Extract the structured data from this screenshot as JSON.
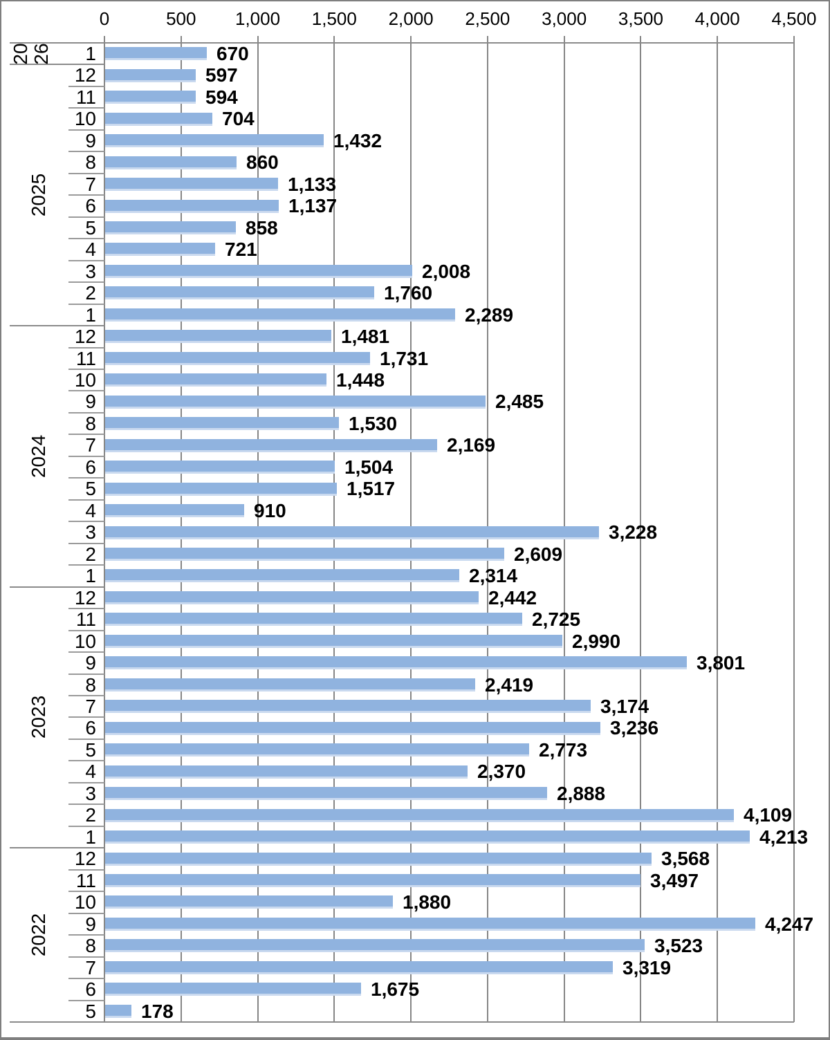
{
  "chart_data": {
    "type": "bar",
    "orientation": "horizontal",
    "title": "",
    "xlabel": "",
    "ylabel": "",
    "value_axis": {
      "position": "top",
      "min": 0,
      "max": 4500,
      "tick_interval": 500,
      "tick_labels": [
        "0",
        "500",
        "1,000",
        "1,500",
        "2,000",
        "2,500",
        "3,000",
        "3,500",
        "4,000",
        "4,500"
      ],
      "grid": true
    },
    "category_axis": {
      "levels": [
        "year",
        "month"
      ],
      "order": "newest-first"
    },
    "data_labels": {
      "show": true,
      "format": "#,##0",
      "position": "outside-end",
      "bold": true
    },
    "groups": [
      {
        "year": "2026",
        "year_label_wrapped": [
          "20",
          "26"
        ],
        "rows": [
          {
            "month": "1",
            "value": 670
          }
        ]
      },
      {
        "year": "2025",
        "rows": [
          {
            "month": "12",
            "value": 597
          },
          {
            "month": "11",
            "value": 594
          },
          {
            "month": "10",
            "value": 704
          },
          {
            "month": "9",
            "value": 1432
          },
          {
            "month": "8",
            "value": 860
          },
          {
            "month": "7",
            "value": 1133
          },
          {
            "month": "6",
            "value": 1137
          },
          {
            "month": "5",
            "value": 858
          },
          {
            "month": "4",
            "value": 721
          },
          {
            "month": "3",
            "value": 2008
          },
          {
            "month": "2",
            "value": 1760
          },
          {
            "month": "1",
            "value": 2289
          }
        ]
      },
      {
        "year": "2024",
        "rows": [
          {
            "month": "12",
            "value": 1481
          },
          {
            "month": "11",
            "value": 1731
          },
          {
            "month": "10",
            "value": 1448
          },
          {
            "month": "9",
            "value": 2485
          },
          {
            "month": "8",
            "value": 1530
          },
          {
            "month": "7",
            "value": 2169
          },
          {
            "month": "6",
            "value": 1504
          },
          {
            "month": "5",
            "value": 1517
          },
          {
            "month": "4",
            "value": 910
          },
          {
            "month": "3",
            "value": 3228
          },
          {
            "month": "2",
            "value": 2609
          },
          {
            "month": "1",
            "value": 2314
          }
        ]
      },
      {
        "year": "2023",
        "rows": [
          {
            "month": "12",
            "value": 2442
          },
          {
            "month": "11",
            "value": 2725
          },
          {
            "month": "10",
            "value": 2990
          },
          {
            "month": "9",
            "value": 3801
          },
          {
            "month": "8",
            "value": 2419
          },
          {
            "month": "7",
            "value": 3174
          },
          {
            "month": "6",
            "value": 3236
          },
          {
            "month": "5",
            "value": 2773
          },
          {
            "month": "4",
            "value": 2370
          },
          {
            "month": "3",
            "value": 2888
          },
          {
            "month": "2",
            "value": 4109
          },
          {
            "month": "1",
            "value": 4213
          }
        ]
      },
      {
        "year": "2022",
        "rows": [
          {
            "month": "12",
            "value": 3568
          },
          {
            "month": "11",
            "value": 3497
          },
          {
            "month": "10",
            "value": 1880
          },
          {
            "month": "9",
            "value": 4247
          },
          {
            "month": "8",
            "value": 3523
          },
          {
            "month": "7",
            "value": 3319
          },
          {
            "month": "6",
            "value": 1675
          },
          {
            "month": "5",
            "value": 178
          }
        ]
      }
    ],
    "colors": {
      "bar_fill": "#90b3df",
      "bar_bottom_edge": "#c9d9ef",
      "gridline": "#868686",
      "year_separator": "#8a8a8a",
      "month_separator": "#9a9a9a",
      "text": "#000000",
      "frame_border": "#7f7f7f",
      "background": "#ffffff"
    }
  }
}
